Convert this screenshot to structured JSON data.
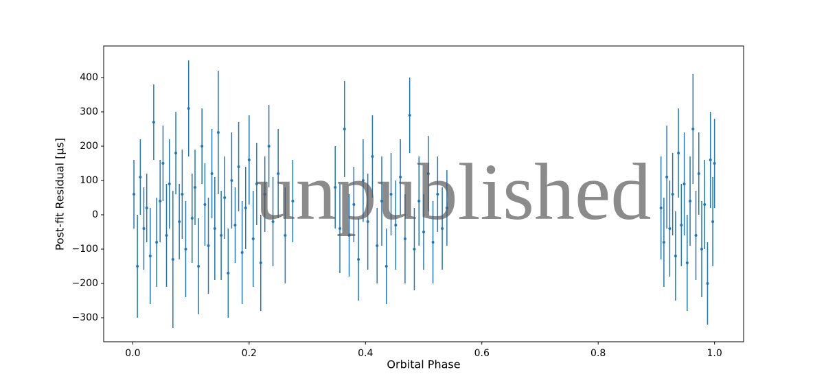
{
  "chart_data": {
    "type": "errorbar",
    "xlabel": "Orbital Phase",
    "ylabel": "Post-fit Residual [μs]",
    "watermark": "unpublished",
    "color": "#1f77b4",
    "xlim": [
      -0.05,
      1.05
    ],
    "ylim": [
      -370,
      492
    ],
    "xticks": [
      {
        "value": 0,
        "label": "0.0"
      },
      {
        "value": 0.2,
        "label": "0.2"
      },
      {
        "value": 0.4,
        "label": "0.4"
      },
      {
        "value": 0.6,
        "label": "0.6"
      },
      {
        "value": 0.8,
        "label": "0.8"
      },
      {
        "value": 1,
        "label": "1.0"
      }
    ],
    "yticks": [
      {
        "value": -300,
        "label": "−300"
      },
      {
        "value": -200,
        "label": "−200"
      },
      {
        "value": -100,
        "label": "−100"
      },
      0,
      100,
      200,
      300,
      400
    ],
    "x": [
      0.002,
      0.008,
      0.013,
      0.019,
      0.024,
      0.03,
      0.036,
      0.041,
      0.047,
      0.052,
      0.058,
      0.063,
      0.069,
      0.074,
      0.08,
      0.085,
      0.091,
      0.096,
      0.102,
      0.107,
      0.113,
      0.119,
      0.124,
      0.13,
      0.136,
      0.141,
      0.147,
      0.152,
      0.158,
      0.164,
      0.17,
      0.176,
      0.182,
      0.188,
      0.194,
      0.2,
      0.207,
      0.213,
      0.22,
      0.227,
      0.234,
      0.241,
      0.25,
      0.262,
      0.275,
      0.348,
      0.356,
      0.364,
      0.372,
      0.38,
      0.388,
      0.396,
      0.404,
      0.412,
      0.42,
      0.428,
      0.436,
      0.444,
      0.452,
      0.46,
      0.468,
      0.476,
      0.484,
      0.492,
      0.5,
      0.508,
      0.516,
      0.524,
      0.532,
      0.54,
      0.908,
      0.913,
      0.918,
      0.923,
      0.928,
      0.933,
      0.938,
      0.943,
      0.948,
      0.953,
      0.958,
      0.963,
      0.968,
      0.973,
      0.978,
      0.983,
      0.988,
      0.993,
      0.997,
      1.0
    ],
    "values": [
      60,
      -150,
      110,
      -40,
      20,
      -120,
      270,
      -80,
      40,
      150,
      -60,
      90,
      -130,
      180,
      -20,
      60,
      -100,
      310,
      -10,
      80,
      -150,
      200,
      30,
      -90,
      120,
      -40,
      240,
      -60,
      50,
      -170,
      100,
      -30,
      140,
      -110,
      20,
      160,
      -70,
      90,
      -140,
      60,
      200,
      -20,
      120,
      -60,
      40,
      80,
      -40,
      250,
      -60,
      30,
      -130,
      100,
      -20,
      170,
      -90,
      40,
      -150,
      60,
      -30,
      110,
      -70,
      290,
      -100,
      40,
      -50,
      120,
      -80,
      60,
      -40,
      20,
      20,
      -80,
      110,
      -40,
      60,
      -120,
      180,
      -30,
      90,
      -140,
      40,
      250,
      -60,
      120,
      -100,
      30,
      -200,
      160,
      -20,
      150
    ],
    "errors": [
      100,
      150,
      110,
      120,
      100,
      140,
      110,
      130,
      120,
      110,
      150,
      130,
      200,
      120,
      110,
      130,
      140,
      140,
      130,
      110,
      140,
      110,
      120,
      140,
      130,
      150,
      180,
      130,
      120,
      130,
      140,
      110,
      130,
      150,
      120,
      130,
      140,
      120,
      140,
      110,
      120,
      130,
      130,
      140,
      120,
      120,
      130,
      140,
      120,
      110,
      120,
      120,
      140,
      120,
      110,
      130,
      110,
      120,
      130,
      110,
      130,
      110,
      120,
      130,
      110,
      110,
      120,
      110,
      120,
      110,
      150,
      130,
      150,
      140,
      120,
      130,
      130,
      120,
      150,
      140,
      130,
      160,
      130,
      120,
      140,
      130,
      120,
      140,
      130,
      130
    ]
  }
}
